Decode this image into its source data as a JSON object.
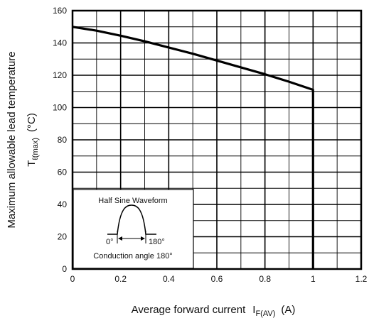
{
  "chart_data": {
    "type": "line",
    "title": "",
    "xlabel": {
      "main": "Average forward current",
      "symbol": "I",
      "subscript": "F(AV)",
      "unit": "(A)"
    },
    "ylabel": {
      "main": "Maximum allowable lead temperature",
      "symbol": "T",
      "subscript": "ℓ(max)",
      "unit": "(°C)"
    },
    "xlim": [
      0,
      1.2
    ],
    "ylim": [
      0,
      160
    ],
    "x_tick_labels": [
      "0",
      "0.2",
      "0.4",
      "0.6",
      "0.8",
      "1",
      "1.2"
    ],
    "y_tick_labels": [
      "0",
      "20",
      "40",
      "60",
      "80",
      "100",
      "120",
      "140",
      "160"
    ],
    "grid": true,
    "series": [
      {
        "x": [
          0,
          0.1,
          0.2,
          0.3,
          0.4,
          0.5,
          0.6,
          0.7,
          0.8,
          0.9,
          1.0,
          1.0
        ],
        "y": [
          150,
          147.6,
          144.5,
          141,
          137.2,
          133.3,
          129.1,
          124.9,
          120.6,
          116,
          111,
          0
        ]
      }
    ],
    "inset": {
      "title": "Half Sine Waveform",
      "left_label": "0°",
      "right_label": "180°",
      "caption": "Conduction angle 180°"
    }
  },
  "colors": {
    "line": "#000000",
    "grid": "#000000",
    "background": "#ffffff"
  }
}
